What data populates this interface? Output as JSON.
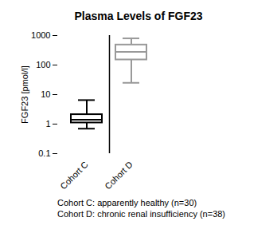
{
  "chart_data": {
    "type": "box",
    "title": "Plasma Levels of FGF23",
    "y_label": "FGF23 [pmol/l]",
    "categories": [
      "Cohort C",
      "Cohort D"
    ],
    "boxes": [
      {
        "min": 0.7,
        "q1": 1.1,
        "median": 1.4,
        "q3": 2.1,
        "max": 6.5
      },
      {
        "min": 25,
        "q1": 150,
        "median": 280,
        "q3": 480,
        "max": 800
      }
    ],
    "colors": [
      "#000000",
      "#999999"
    ],
    "log": "y",
    "ylim": [
      0.1,
      1000
    ],
    "yticks": [
      0.1,
      1,
      10,
      100,
      1000
    ],
    "annotations": [
      "Cohort C: apparently healthy (n=30)",
      "Cohort D: chronic renal insufficiency (n=38)"
    ]
  }
}
